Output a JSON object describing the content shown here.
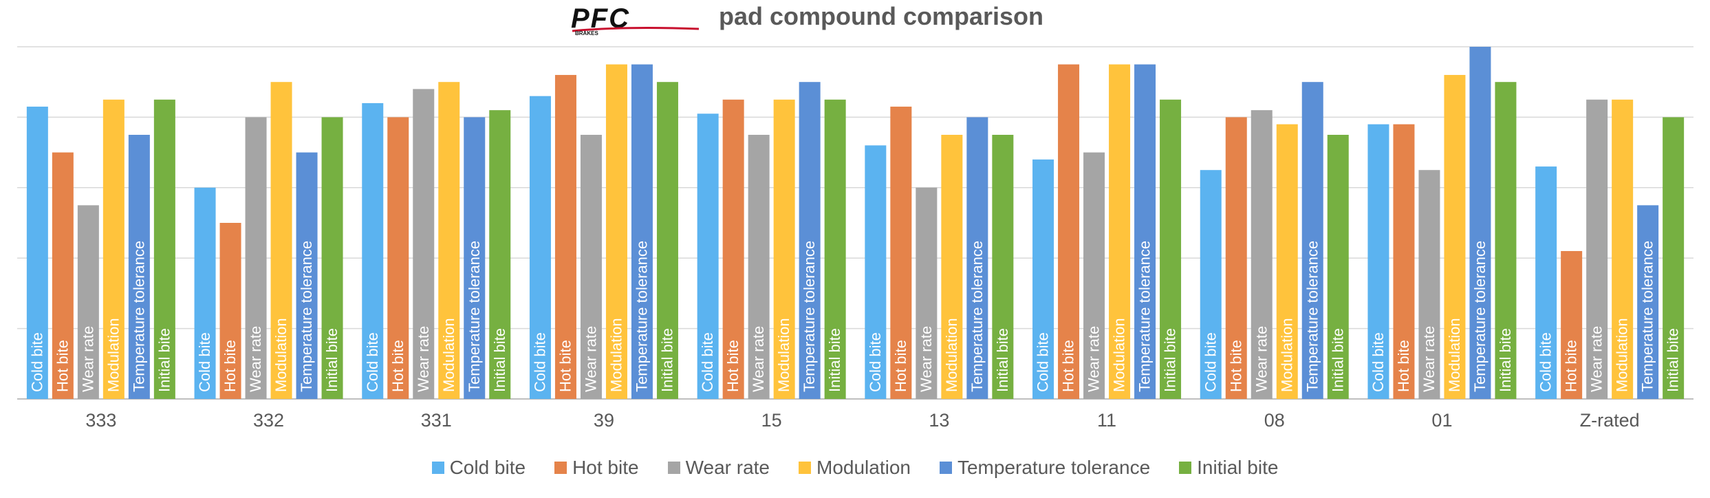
{
  "logo": {
    "text": "PFC",
    "subtext": "BRAKES"
  },
  "chart_data": {
    "type": "bar",
    "title": "pad compound comparison",
    "categories": [
      "333",
      "332",
      "331",
      "39",
      "15",
      "13",
      "11",
      "08",
      "01",
      "Z-rated"
    ],
    "ylim": [
      0,
      10
    ],
    "grid": true,
    "legend_position": "bottom",
    "series": [
      {
        "name": "Cold bite",
        "color": "#5BB3F0",
        "values": [
          8.3,
          6.0,
          8.4,
          8.6,
          8.1,
          7.2,
          6.8,
          6.5,
          7.8,
          6.6
        ]
      },
      {
        "name": "Hot bite",
        "color": "#E5834A",
        "values": [
          7.0,
          5.0,
          8.0,
          9.2,
          8.5,
          8.3,
          9.5,
          8.0,
          7.8,
          4.2
        ]
      },
      {
        "name": "Wear rate",
        "color": "#A5A5A5",
        "values": [
          5.5,
          8.0,
          8.8,
          7.5,
          7.5,
          6.0,
          7.0,
          8.2,
          6.5,
          8.5
        ]
      },
      {
        "name": "Modulation",
        "color": "#FFC33C",
        "values": [
          8.5,
          9.0,
          9.0,
          9.5,
          8.5,
          7.5,
          9.5,
          7.8,
          9.2,
          8.5
        ]
      },
      {
        "name": "Temperature tolerance",
        "color": "#5B8FD6",
        "values": [
          7.5,
          7.0,
          8.0,
          9.5,
          9.0,
          8.0,
          9.5,
          9.0,
          10.0,
          5.5
        ]
      },
      {
        "name": "Initial bite",
        "color": "#76B041",
        "values": [
          8.5,
          8.0,
          8.2,
          9.0,
          8.5,
          7.5,
          8.5,
          7.5,
          9.0,
          8.0
        ]
      }
    ]
  }
}
